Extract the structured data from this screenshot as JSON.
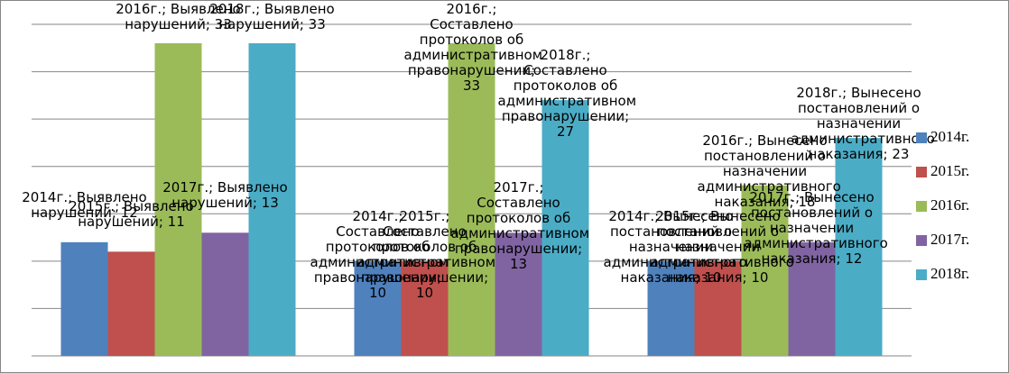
{
  "chart_data": {
    "type": "bar",
    "categories": [
      "Выявлено нарушений",
      "Составлено протоколов об административном правонарушении",
      "Вынесено постановлений о назначении административного наказания"
    ],
    "series": [
      {
        "name": "2014г.",
        "color": "#4f81bd",
        "values": [
          12,
          10,
          10
        ],
        "value_labels": [
          "2014г.; Выявлено нарушений; 12",
          "2014г.; Составлено протоколов об административном правонарушении; 10",
          "2014г.; Вынесено постановлений о назначении административного наказания; 10"
        ]
      },
      {
        "name": "2015г.",
        "color": "#c0504d",
        "values": [
          11,
          10,
          10
        ],
        "value_labels": [
          "2015г.; Выявлено нарушений; 11",
          "2015г.; Составлено протоколов об административном правонарушении; 10",
          "2015г.; Вынесено постановлений о назначении административного наказания; 10"
        ]
      },
      {
        "name": "2016г.",
        "color": "#9bbb59",
        "values": [
          33,
          33,
          18
        ],
        "value_labels": [
          "2016г.; Выявлено нарушений; 33",
          "2016г.; Составлено протоколов об административном правонарушении; 33",
          "2016г.; Вынесено постановлений о назначении административного наказания; 18"
        ]
      },
      {
        "name": "2017г.",
        "color": "#8064a2",
        "values": [
          13,
          13,
          12
        ],
        "value_labels": [
          "2017г.; Выявлено нарушений; 13",
          "2017г.; Составлено протоколов об административном правонарушении; 13",
          "2017г.; Вынесено постановлений о назначении административного наказания; 12"
        ]
      },
      {
        "name": "2018г.",
        "color": "#4bacc6",
        "values": [
          33,
          27,
          23
        ],
        "value_labels": [
          "2018г.; Выявлено нарушений; 33",
          "2018г.; Составлено протоколов об административном правонарушении; 27",
          "2018г.; Вынесено постановлений о назначении административного наказания; 23"
        ]
      }
    ],
    "ylim": [
      0,
      35
    ],
    "yticks": [
      0,
      5,
      10,
      15,
      20,
      25,
      30,
      35
    ],
    "grid": true,
    "legend": "right"
  }
}
